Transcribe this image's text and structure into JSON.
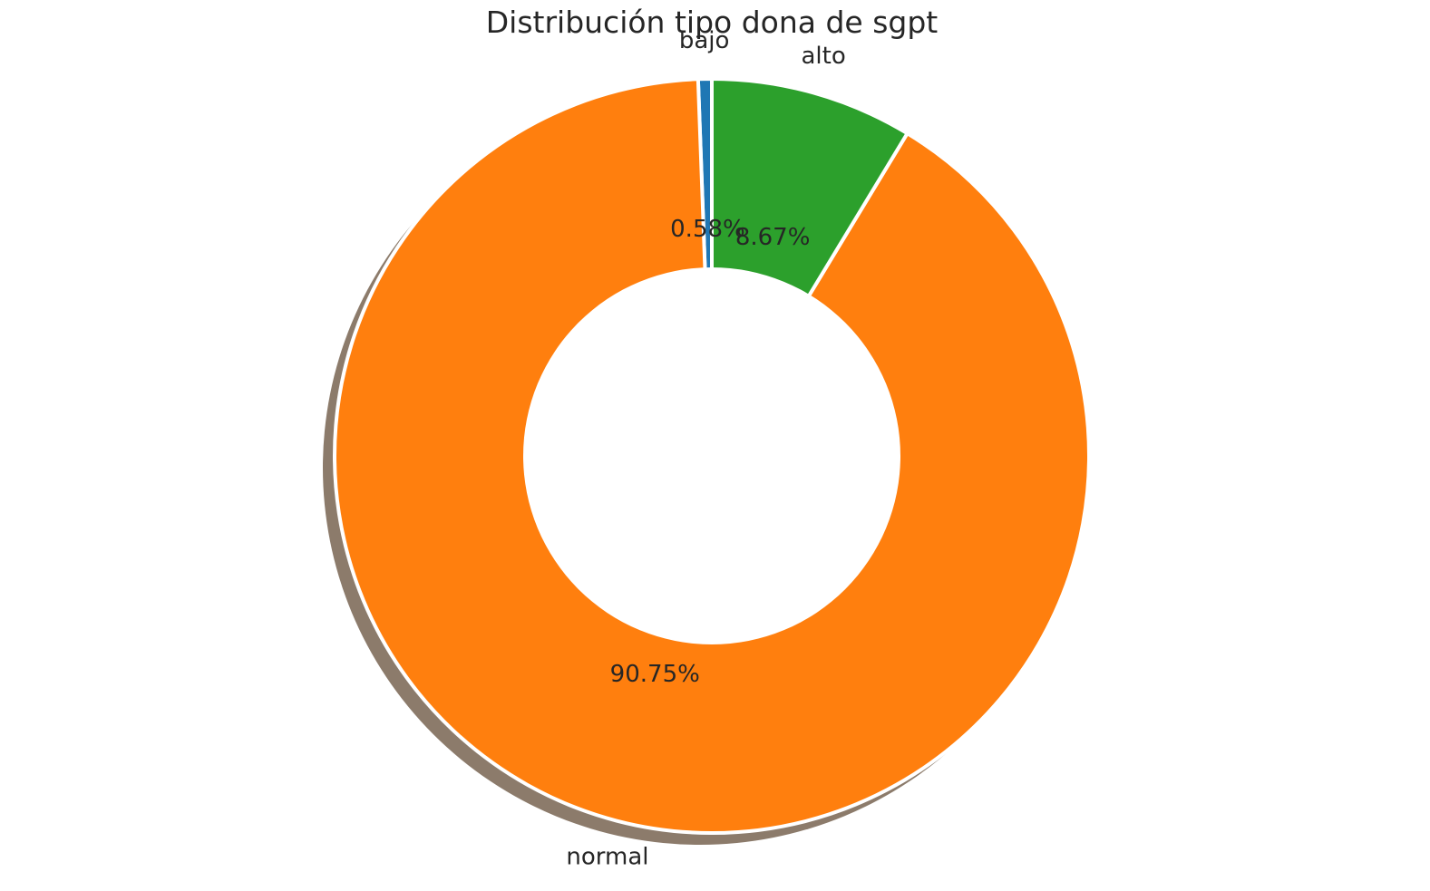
{
  "chart_data": {
    "type": "pie",
    "title": "Distribución tipo dona de sgpt",
    "donut": true,
    "shadow": true,
    "start_angle_deg": 90,
    "direction": "counterclockwise",
    "slices": [
      {
        "label": "bajo",
        "value": 0.58,
        "pct_label": "0.58%",
        "color": "#1f77b4"
      },
      {
        "label": "normal",
        "value": 90.75,
        "pct_label": "90.75%",
        "color": "#ff7f0e"
      },
      {
        "label": "alto",
        "value": 8.67,
        "pct_label": "8.67%",
        "color": "#2ca02c"
      }
    ],
    "shadow_color": "#8c7b6b",
    "edge_color": "#ffffff"
  }
}
